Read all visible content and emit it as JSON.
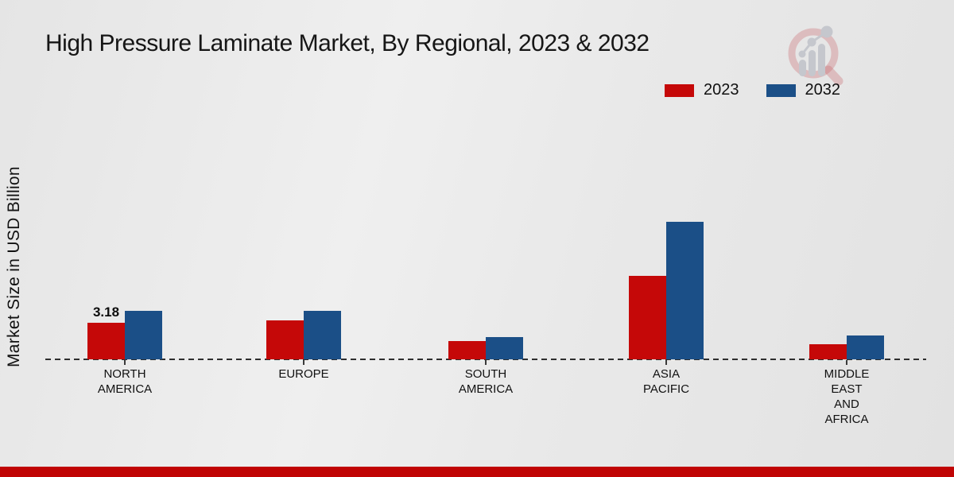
{
  "title": "High Pressure Laminate Market, By Regional, 2023 & 2032",
  "ylabel": "Market Size in USD Billion",
  "colors": {
    "series_2023": "#c50808",
    "series_2032": "#1b4f87",
    "axis": "#2e2e2e",
    "text": "#111111",
    "bottom_band": "#c00404",
    "logo_ring": "rgba(198,92,100,0.32)",
    "logo_bars": "#c5c7cd"
  },
  "legend": {
    "position": "top-right",
    "items": [
      "2023",
      "2032"
    ]
  },
  "logo_name": "market-research-magnifier-chart-logo",
  "chart_data": {
    "type": "bar",
    "title": "High Pressure Laminate Market, By Regional, 2023 & 2032",
    "xlabel": "",
    "ylabel": "Market Size in USD Billion",
    "grid": false,
    "baseline_style": "dashed",
    "legend_position": "top-right",
    "categories": [
      "NORTH AMERICA",
      "EUROPE",
      "SOUTH AMERICA",
      "ASIA PACIFIC",
      "MIDDLE EAST AND AFRICA"
    ],
    "category_label_lines": [
      [
        "NORTH",
        "AMERICA"
      ],
      [
        "EUROPE"
      ],
      [
        "SOUTH",
        "AMERICA"
      ],
      [
        "ASIA",
        "PACIFIC"
      ],
      [
        "MIDDLE",
        "EAST",
        "AND",
        "AFRICA"
      ]
    ],
    "series": [
      {
        "name": "2023",
        "color": "#c50808",
        "values": [
          3.18,
          3.4,
          1.6,
          7.25,
          1.3
        ]
      },
      {
        "name": "2032",
        "color": "#1b4f87",
        "values": [
          4.2,
          4.25,
          1.95,
          11.95,
          2.1
        ]
      }
    ],
    "data_labels": [
      {
        "series": "2023",
        "category": "NORTH AMERICA",
        "category_index": 0,
        "text": "3.18"
      }
    ],
    "y_axis_ticks_visible": false
  }
}
